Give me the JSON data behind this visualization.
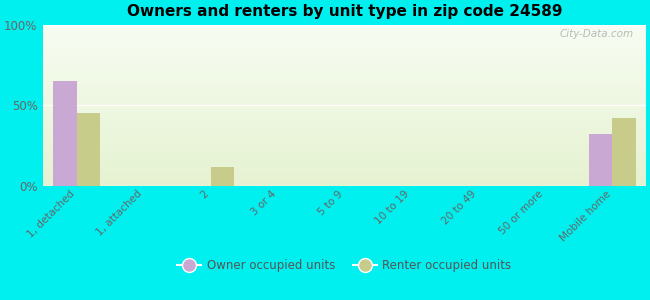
{
  "title": "Owners and renters by unit type in zip code 24589",
  "categories": [
    "1, detached",
    "1, attached",
    "2",
    "3 or 4",
    "5 to 9",
    "10 to 19",
    "20 to 49",
    "50 or more",
    "Mobile home"
  ],
  "owner_values": [
    65,
    0,
    0,
    0,
    0,
    0,
    0,
    0,
    32
  ],
  "renter_values": [
    45,
    0,
    12,
    0,
    0,
    0,
    0,
    0,
    42
  ],
  "owner_color": "#c9a8d4",
  "renter_color": "#c8cc8a",
  "background_color": "#00efef",
  "yticklabels": [
    "0%",
    "50%",
    "100%"
  ],
  "yticks": [
    0,
    50,
    100
  ],
  "ylim": [
    0,
    100
  ],
  "bar_width": 0.35,
  "legend_owner": "Owner occupied units",
  "legend_renter": "Renter occupied units",
  "watermark": "City-Data.com"
}
